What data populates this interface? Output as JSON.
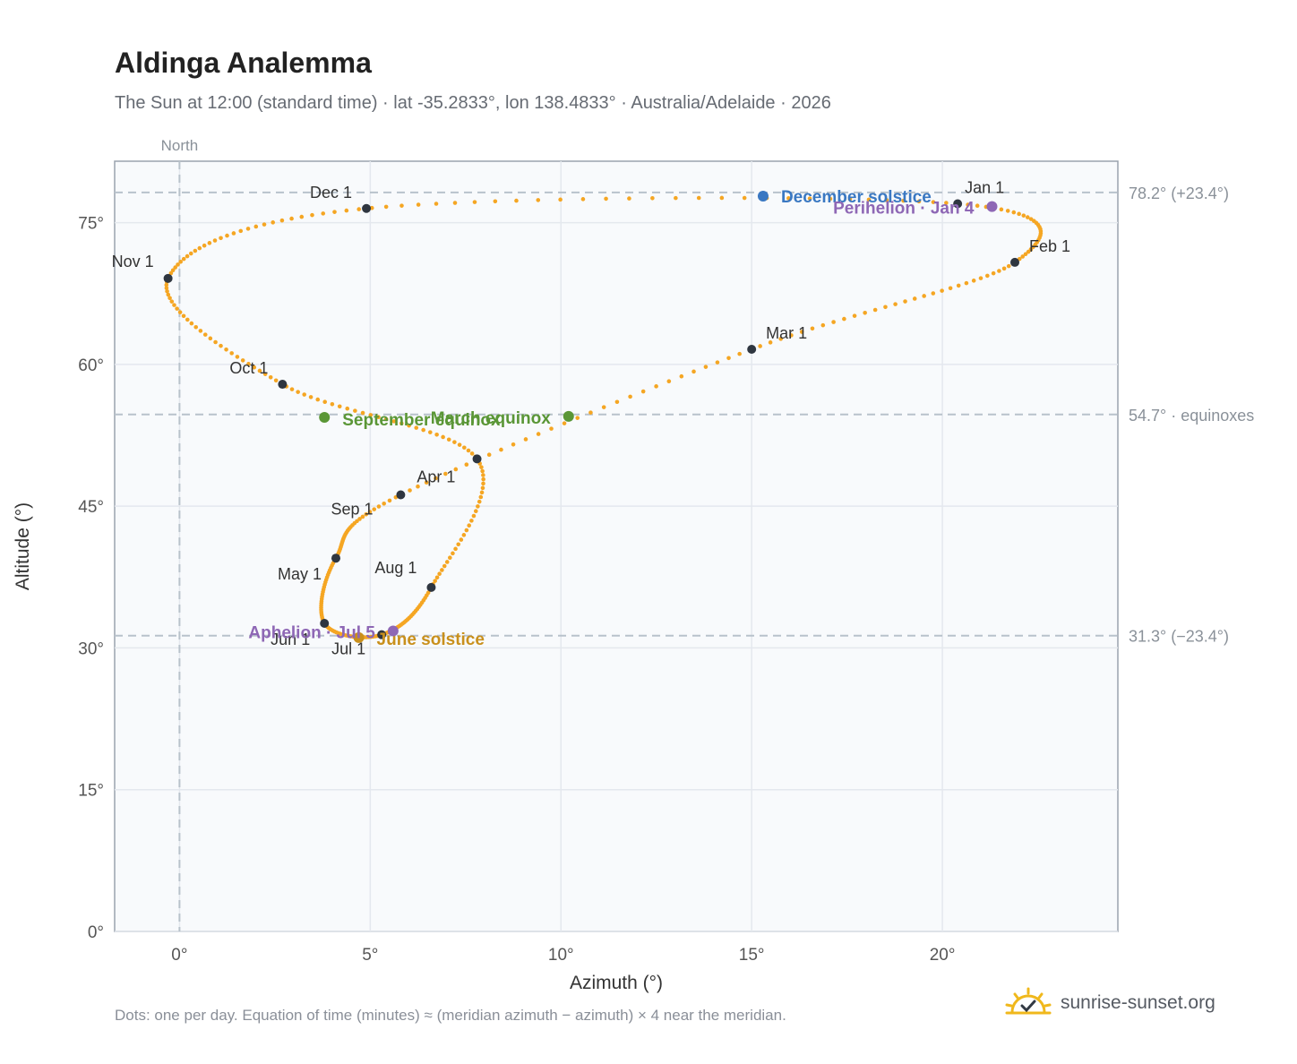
{
  "header": {
    "title": "Aldinga Analemma",
    "subtitle": "The Sun at 12:00 (standard time) · lat -35.2833°, lon 138.4833° · Australia/Adelaide · 2026"
  },
  "footer": {
    "note": "Dots: one per day. Equation of time (minutes) ≈ (meridian azimuth − azimuth) × 4 near the meridian.",
    "brand": "sunrise-sunset.org",
    "brand_icon": "sun-check-icon"
  },
  "chart_data": {
    "type": "scatter",
    "title": "Aldinga Analemma",
    "xlabel": "Azimuth (°)",
    "ylabel": "Altitude (°)",
    "xlim": [
      -1.7,
      24.6
    ],
    "ylim": [
      0,
      81.5
    ],
    "xticks": [
      0,
      5,
      10,
      15,
      20
    ],
    "yticks": [
      0,
      15,
      30,
      45,
      60,
      75
    ],
    "x_tick_labels": [
      "0°",
      "5°",
      "10°",
      "15°",
      "20°"
    ],
    "y_tick_labels": [
      "0°",
      "15°",
      "30°",
      "45°",
      "60°",
      "75°"
    ],
    "grid": true,
    "meridian_label": "North",
    "meridian_azimuth": 0,
    "reference_lines": [
      {
        "altitude": 78.2,
        "label": "78.2° (+23.4°)"
      },
      {
        "altitude": 54.7,
        "label": "54.7° · equinoxes"
      },
      {
        "altitude": 31.3,
        "label": "31.3° (−23.4°)"
      }
    ],
    "month_markers": [
      {
        "label": "Jan 1",
        "azimuth": 20.4,
        "altitude": 77.0
      },
      {
        "label": "Feb 1",
        "azimuth": 21.9,
        "altitude": 70.8
      },
      {
        "label": "Mar 1",
        "azimuth": 15.0,
        "altitude": 61.6
      },
      {
        "label": "Apr 1",
        "azimuth": 5.8,
        "altitude": 46.2
      },
      {
        "label": "May 1",
        "azimuth": 4.1,
        "altitude": 39.5
      },
      {
        "label": "Jun 1",
        "azimuth": 3.8,
        "altitude": 32.6
      },
      {
        "label": "Jul 1",
        "azimuth": 5.3,
        "altitude": 31.4
      },
      {
        "label": "Aug 1",
        "azimuth": 6.6,
        "altitude": 36.4
      },
      {
        "label": "Sep 1",
        "azimuth": 7.8,
        "altitude": 50.0
      },
      {
        "label": "Oct 1",
        "azimuth": 2.7,
        "altitude": 57.9
      },
      {
        "label": "Nov 1",
        "azimuth": -0.3,
        "altitude": 69.1
      },
      {
        "label": "Dec 1",
        "azimuth": 4.9,
        "altitude": 76.5
      }
    ],
    "events": [
      {
        "label": "December solstice",
        "azimuth": 15.3,
        "altitude": 77.8,
        "color": "#3a78c2"
      },
      {
        "label": "Perihelion · Jan 4",
        "azimuth": 21.3,
        "altitude": 76.7,
        "color": "#8e67b5"
      },
      {
        "label": "March equinox",
        "azimuth": 10.2,
        "altitude": 54.5,
        "color": "#5a9636"
      },
      {
        "label": "September equinox",
        "azimuth": 3.8,
        "altitude": 54.4,
        "color": "#5a9636"
      },
      {
        "label": "June solstice",
        "azimuth": 4.7,
        "altitude": 31.1,
        "color": "#c9901c"
      },
      {
        "label": "Aphelion · Jul 5",
        "azimuth": 5.6,
        "altitude": 31.8,
        "color": "#8e67b5"
      }
    ],
    "daily_path_monthly": [
      {
        "month": "Jan 1",
        "azimuth": 20.4,
        "altitude": 77.0
      },
      {
        "month": "Feb 1",
        "azimuth": 21.9,
        "altitude": 70.8
      },
      {
        "month": "Mar 1",
        "azimuth": 15.0,
        "altitude": 61.6
      },
      {
        "month": "Apr 1",
        "azimuth": 5.8,
        "altitude": 46.2
      },
      {
        "month": "May 1",
        "azimuth": 4.1,
        "altitude": 39.5
      },
      {
        "month": "Jun 1",
        "azimuth": 3.8,
        "altitude": 32.6
      },
      {
        "month": "Jul 1",
        "azimuth": 5.3,
        "altitude": 31.4
      },
      {
        "month": "Aug 1",
        "azimuth": 6.6,
        "altitude": 36.4
      },
      {
        "month": "Sep 1",
        "azimuth": 7.8,
        "altitude": 50.0
      },
      {
        "month": "Oct 1",
        "azimuth": 2.7,
        "altitude": 57.9
      },
      {
        "month": "Nov 1",
        "azimuth": -0.3,
        "altitude": 69.1
      },
      {
        "month": "Dec 1",
        "azimuth": 4.9,
        "altitude": 76.5
      }
    ],
    "path_color": "#f5a623",
    "marker_color": "#2f3640"
  }
}
